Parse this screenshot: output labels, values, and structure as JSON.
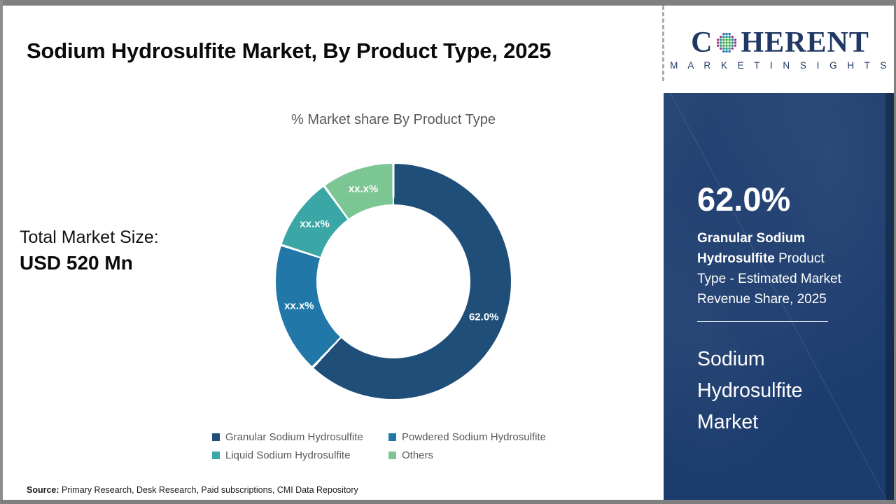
{
  "header": {
    "title": "Sodium Hydrosulfite Market, By Product Type, 2025"
  },
  "logo": {
    "name": "Coherent Market Insights",
    "word_left": "C",
    "word_right": "HERENT",
    "tagline": "M A R K E T   I N S I G H T S",
    "brand_color": "#1F3864"
  },
  "left_panel": {
    "total_label": "Total Market Size:",
    "total_value": "USD 520 Mn"
  },
  "chart_data": {
    "type": "pie",
    "donut": true,
    "title": "% Market share By Product Type",
    "categories": [
      "Granular Sodium Hydrosulfite",
      "Powdered Sodium Hydrosulfite",
      "Liquid Sodium Hydrosulfite",
      "Others"
    ],
    "values": [
      62.0,
      18.0,
      10.0,
      10.0
    ],
    "value_display": [
      "62.0%",
      "xx.x%",
      "xx.x%",
      "xx.x%"
    ],
    "values_note": "Only the leading share is printed (62.0%); the other slice values are masked as xx.x% and estimated from arc angles",
    "colors": [
      "#1F4E79",
      "#2178A8",
      "#3AA6A6",
      "#7CC693"
    ],
    "start_angle_deg": 0,
    "direction": "clockwise",
    "donut_hole_ratio": 0.65,
    "legend_position": "bottom",
    "label_color": "#ffffff"
  },
  "sidebar": {
    "background_color": "#1C3C6E",
    "stat_value": "62.0%",
    "stat_desc_bold": "Granular Sodium Hydrosulfite",
    "stat_desc_rest": "  Product Type - Estimated Market Revenue Share, 2025",
    "market_name": "Sodium Hydrosulfite Market"
  },
  "footer": {
    "source_label": "Source:",
    "source_text": " Primary Research, Desk Research, Paid subscriptions, CMI Data Repository"
  }
}
